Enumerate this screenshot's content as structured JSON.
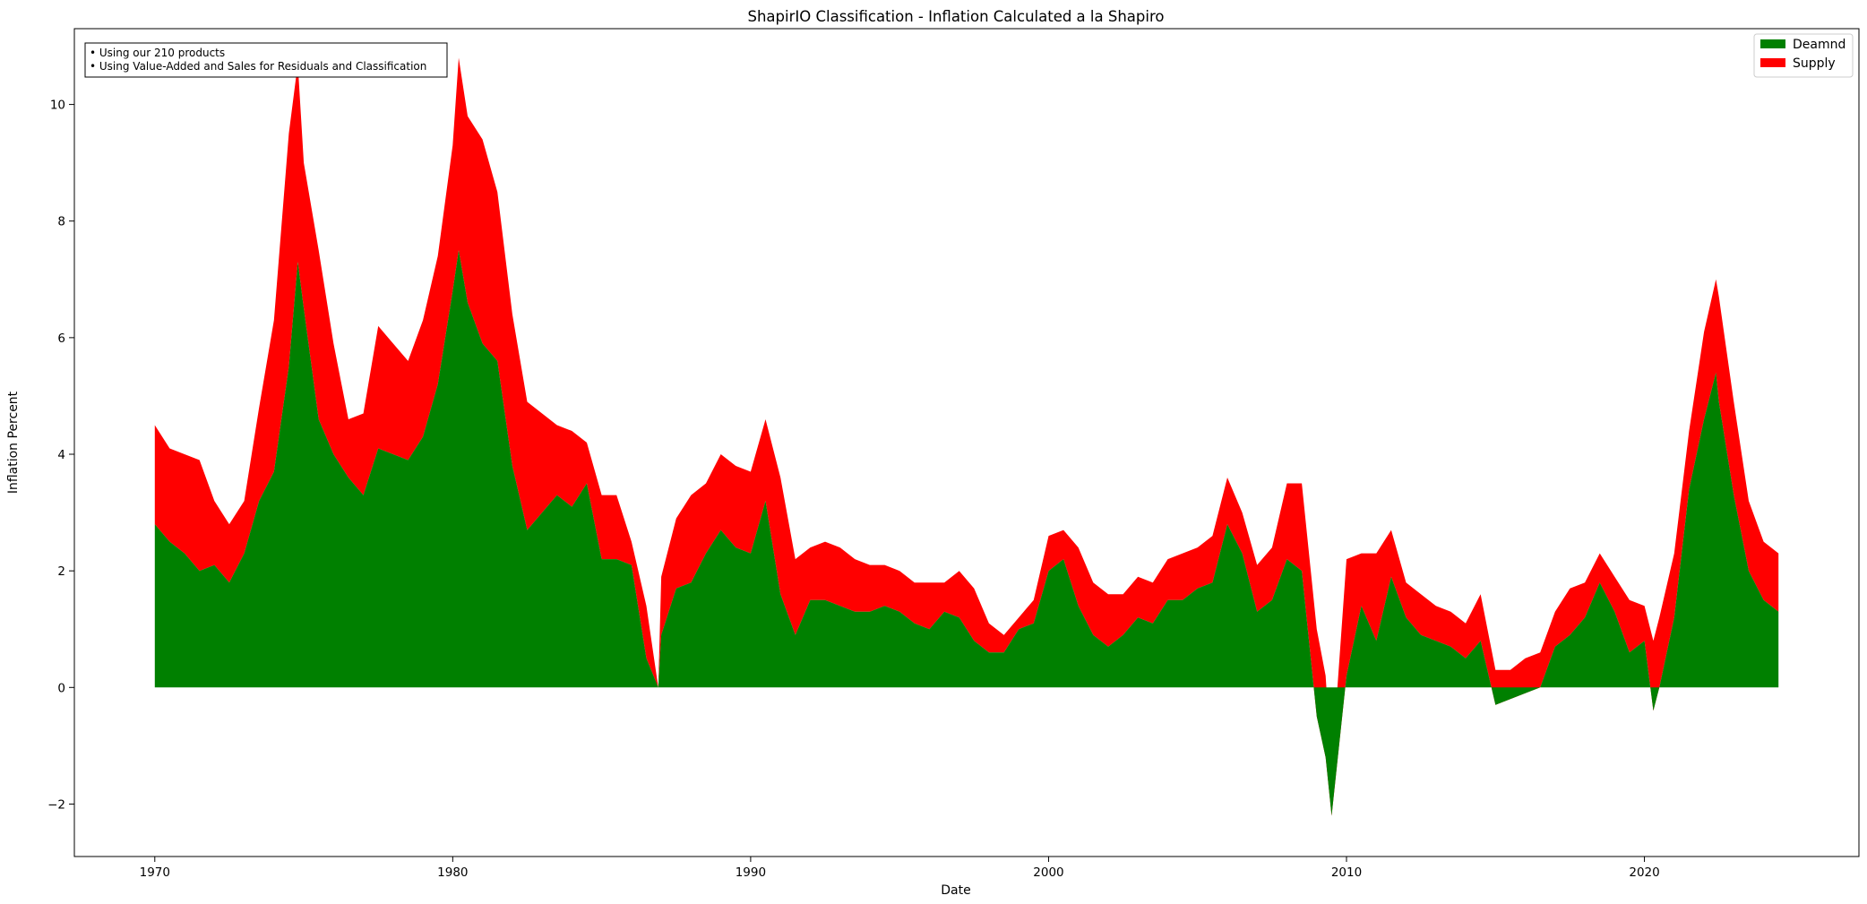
{
  "chart_data": {
    "type": "area",
    "stacked": true,
    "title": "ShapirIO Classification - Inflation Calculated a la Shapiro",
    "xlabel": "Date",
    "ylabel": "Inflation Percent",
    "xlim": [
      1967.3,
      2027.2
    ],
    "ylim": [
      -2.9,
      11.3
    ],
    "x_ticks": [
      1970,
      1980,
      1990,
      2000,
      2010,
      2020
    ],
    "x_tick_labels": [
      "1970",
      "1980",
      "1990",
      "2000",
      "2010",
      "2020"
    ],
    "y_ticks": [
      -2,
      0,
      2,
      4,
      6,
      8,
      10
    ],
    "y_tick_labels": [
      "−2",
      "0",
      "2",
      "4",
      "6",
      "8",
      "10"
    ],
    "grid": false,
    "legend_position": "top-right",
    "annotation_lines": [
      "• Using our 210 products",
      "• Using Value-Added and Sales for Residuals and Classification"
    ],
    "x": [
      1970.0,
      1970.5,
      1971.0,
      1971.5,
      1972.0,
      1972.5,
      1973.0,
      1973.5,
      1974.0,
      1974.5,
      1974.8,
      1975.0,
      1975.5,
      1976.0,
      1976.5,
      1977.0,
      1977.5,
      1978.0,
      1978.5,
      1979.0,
      1979.5,
      1980.0,
      1980.2,
      1980.5,
      1981.0,
      1981.5,
      1982.0,
      1982.5,
      1983.0,
      1983.5,
      1984.0,
      1984.5,
      1985.0,
      1985.5,
      1986.0,
      1986.5,
      1986.9,
      1987.0,
      1987.5,
      1988.0,
      1988.5,
      1989.0,
      1989.5,
      1990.0,
      1990.5,
      1991.0,
      1991.5,
      1992.0,
      1992.5,
      1993.0,
      1993.5,
      1994.0,
      1994.5,
      1995.0,
      1995.5,
      1996.0,
      1996.5,
      1997.0,
      1997.5,
      1998.0,
      1998.5,
      1999.0,
      1999.5,
      2000.0,
      2000.5,
      2001.0,
      2001.5,
      2002.0,
      2002.5,
      2003.0,
      2003.5,
      2004.0,
      2004.5,
      2005.0,
      2005.5,
      2006.0,
      2006.5,
      2007.0,
      2007.5,
      2008.0,
      2008.5,
      2009.0,
      2009.3,
      2009.5,
      2010.0,
      2010.5,
      2011.0,
      2011.5,
      2012.0,
      2012.5,
      2013.0,
      2013.5,
      2014.0,
      2014.5,
      2015.0,
      2015.5,
      2016.0,
      2016.5,
      2017.0,
      2017.5,
      2018.0,
      2018.5,
      2019.0,
      2019.5,
      2020.0,
      2020.3,
      2020.5,
      2021.0,
      2021.5,
      2022.0,
      2022.4,
      2022.5,
      2023.0,
      2023.5,
      2024.0,
      2024.5
    ],
    "series": [
      {
        "name": "Deamnd",
        "color": "#008000",
        "values": [
          2.8,
          2.5,
          2.3,
          2.0,
          2.1,
          1.8,
          2.3,
          3.2,
          3.7,
          5.5,
          7.3,
          6.5,
          4.6,
          4.0,
          3.6,
          3.3,
          4.1,
          4.0,
          3.9,
          4.3,
          5.2,
          6.8,
          7.5,
          6.6,
          5.9,
          5.6,
          3.8,
          2.7,
          3.0,
          3.3,
          3.1,
          3.5,
          2.2,
          2.2,
          2.1,
          0.5,
          0.0,
          0.9,
          1.7,
          1.8,
          2.3,
          2.7,
          2.4,
          2.3,
          3.2,
          1.6,
          0.9,
          1.5,
          1.5,
          1.4,
          1.3,
          1.3,
          1.4,
          1.3,
          1.1,
          1.0,
          1.3,
          1.2,
          0.8,
          0.6,
          0.6,
          1.0,
          1.1,
          2.0,
          2.2,
          1.4,
          0.9,
          0.7,
          0.9,
          1.2,
          1.1,
          1.5,
          1.5,
          1.7,
          1.8,
          2.8,
          2.3,
          1.3,
          1.5,
          2.2,
          2.0,
          -0.5,
          -1.2,
          -2.2,
          0.2,
          1.4,
          0.8,
          1.9,
          1.2,
          0.9,
          0.8,
          0.7,
          0.5,
          0.8,
          -0.3,
          -0.2,
          -0.1,
          0.0,
          0.7,
          0.9,
          1.2,
          1.8,
          1.3,
          0.6,
          0.8,
          -0.4,
          0.0,
          1.2,
          3.4,
          4.6,
          5.4,
          4.9,
          3.3,
          2.0,
          1.5,
          1.3
        ]
      },
      {
        "name": "Supply",
        "color": "#ff0000",
        "values": [
          1.7,
          1.6,
          1.7,
          1.9,
          1.1,
          1.0,
          0.9,
          1.6,
          2.6,
          4.0,
          3.4,
          2.5,
          2.9,
          1.9,
          1.0,
          1.4,
          2.1,
          1.9,
          1.7,
          2.0,
          2.2,
          2.5,
          3.3,
          3.2,
          3.5,
          2.9,
          2.6,
          2.2,
          1.7,
          1.2,
          1.3,
          0.7,
          1.1,
          1.1,
          0.4,
          0.9,
          0.0,
          1.0,
          1.2,
          1.5,
          1.2,
          1.3,
          1.4,
          1.4,
          1.4,
          2.0,
          1.3,
          0.9,
          1.0,
          1.0,
          0.9,
          0.8,
          0.7,
          0.7,
          0.7,
          0.8,
          0.5,
          0.8,
          0.9,
          0.5,
          0.3,
          0.2,
          0.4,
          0.6,
          0.5,
          1.0,
          0.9,
          0.9,
          0.7,
          0.7,
          0.7,
          0.7,
          0.8,
          0.7,
          0.8,
          0.8,
          0.7,
          0.8,
          0.9,
          1.3,
          1.5,
          1.5,
          1.4,
          0.8,
          2.0,
          0.9,
          1.5,
          0.8,
          0.6,
          0.7,
          0.6,
          0.6,
          0.6,
          0.8,
          0.6,
          0.5,
          0.6,
          0.6,
          0.6,
          0.8,
          0.6,
          0.5,
          0.6,
          0.9,
          0.6,
          1.2,
          1.2,
          1.1,
          1.0,
          1.5,
          1.6,
          1.8,
          1.6,
          1.2,
          1.0,
          1.0
        ]
      }
    ]
  }
}
